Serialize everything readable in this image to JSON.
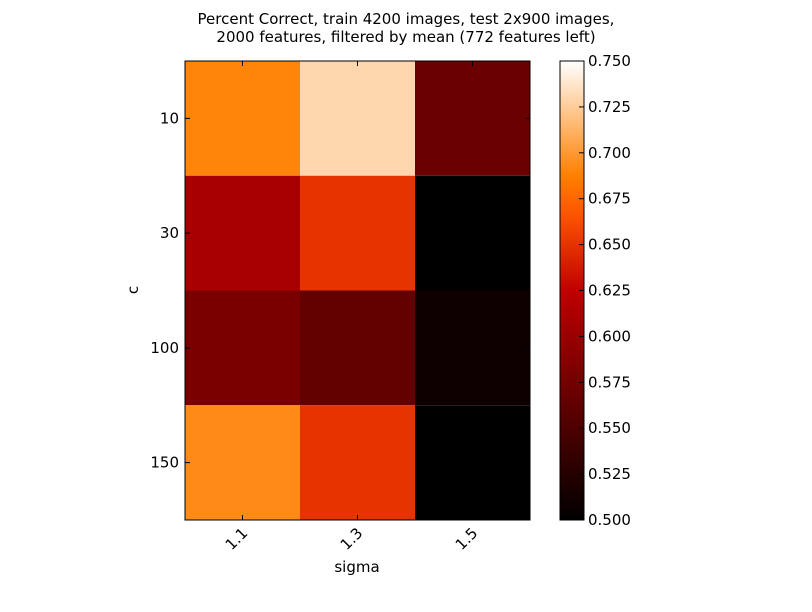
{
  "chart_data": {
    "type": "heatmap",
    "title_lines": [
      "Percent Correct, train 4200 images, test 2x900 images,",
      "2000 features, filtered by mean (772 features left)"
    ],
    "xlabel": "sigma",
    "ylabel": "c",
    "x_categories": [
      "1.1",
      "1.3",
      "1.5"
    ],
    "y_categories": [
      "10",
      "30",
      "100",
      "150"
    ],
    "values": [
      [
        0.69,
        0.73,
        0.57
      ],
      [
        0.61,
        0.65,
        0.5
      ],
      [
        0.58,
        0.565,
        0.51
      ],
      [
        0.693,
        0.65,
        0.5
      ]
    ],
    "colormap": "gist_heat",
    "vmin": 0.5,
    "vmax": 0.75,
    "colorbar_ticks": [
      "0.500",
      "0.525",
      "0.550",
      "0.575",
      "0.600",
      "0.625",
      "0.650",
      "0.675",
      "0.700",
      "0.725",
      "0.750"
    ]
  }
}
